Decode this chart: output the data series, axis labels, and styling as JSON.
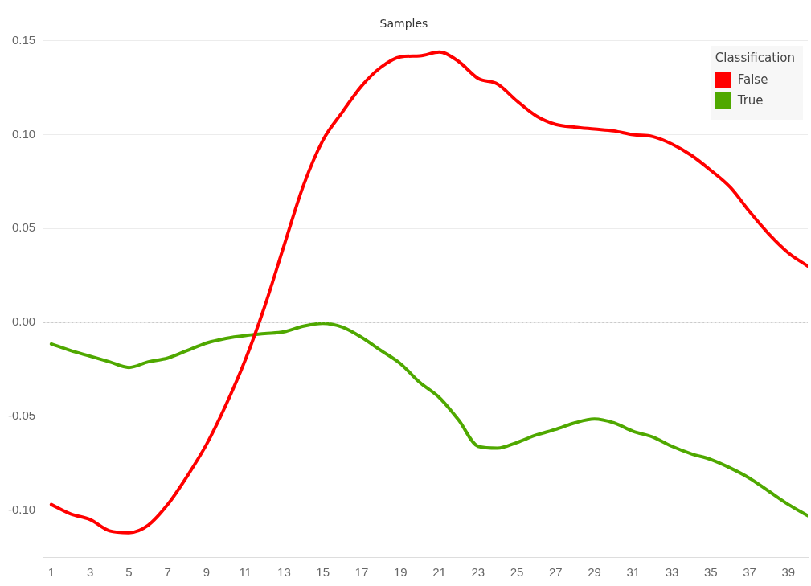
{
  "chart_data": {
    "type": "line",
    "title": "Samples",
    "legend_title": "Classification",
    "legend": "top right",
    "grid": "y",
    "marker": "none",
    "line_style": "solid",
    "x": [
      1,
      2,
      3,
      4,
      5,
      6,
      7,
      8,
      9,
      10,
      11,
      12,
      13,
      14,
      15,
      16,
      17,
      18,
      19,
      20,
      21,
      22,
      23,
      24,
      25,
      26,
      27,
      28,
      29,
      30,
      31,
      32,
      33,
      34,
      35,
      36,
      37,
      38,
      39,
      40
    ],
    "xlim": [
      0.6,
      40
    ],
    "xticks": [
      1,
      3,
      5,
      7,
      9,
      11,
      13,
      15,
      17,
      19,
      21,
      23,
      25,
      27,
      29,
      31,
      33,
      35,
      37,
      39
    ],
    "series": [
      {
        "name": "False",
        "color": "#ff0000",
        "values": [
          -0.097,
          -0.102,
          -0.105,
          -0.111,
          -0.112,
          -0.108,
          -0.097,
          -0.082,
          -0.065,
          -0.044,
          -0.02,
          0.0085,
          0.041,
          0.073,
          0.097,
          0.112,
          0.126,
          0.136,
          0.1415,
          0.142,
          0.144,
          0.139,
          0.13,
          0.127,
          0.118,
          0.11,
          0.1055,
          0.104,
          0.103,
          0.102,
          0.1,
          0.099,
          0.095,
          0.089,
          0.081,
          0.072,
          0.059,
          0.047,
          0.037,
          0.03
        ]
      },
      {
        "name": "True",
        "color": "#4fa800",
        "values": [
          -0.0115,
          -0.015,
          -0.018,
          -0.021,
          -0.024,
          -0.021,
          -0.019,
          -0.015,
          -0.011,
          -0.0085,
          -0.007,
          -0.006,
          -0.005,
          -0.002,
          -0.0005,
          -0.0025,
          -0.008,
          -0.015,
          -0.022,
          -0.032,
          -0.04,
          -0.052,
          -0.066,
          -0.067,
          -0.064,
          -0.06,
          -0.057,
          -0.0535,
          -0.0515,
          -0.0535,
          -0.058,
          -0.061,
          -0.066,
          -0.07,
          -0.073,
          -0.0775,
          -0.083,
          -0.09,
          -0.097,
          -0.103
        ]
      }
    ],
    "ylim": [
      -0.125,
      0.15
    ],
    "yticks": [
      {
        "value": -0.1,
        "label": "-0.10"
      },
      -0.05,
      {
        "value": 0,
        "label": "0.00"
      },
      0.05,
      {
        "value": 0.1,
        "label": "0.10"
      },
      0.15
    ],
    "ref_lines": [
      {
        "axis": "y",
        "value": 0,
        "color": "#b0b0b0",
        "line_style": "dotted"
      }
    ]
  }
}
